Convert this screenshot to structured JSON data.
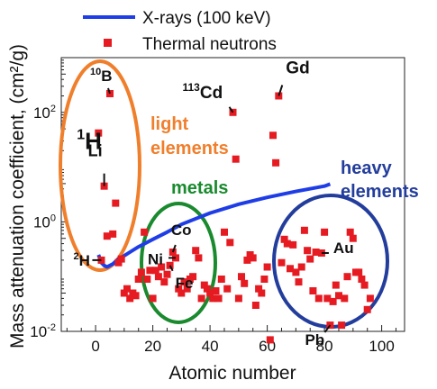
{
  "chart_data": {
    "type": "scatter",
    "xlabel": "Atomic number",
    "ylabel": "Mass attenuation coefficient, (cm²/g)",
    "xlim": [
      -12,
      108
    ],
    "ylim_log10": [
      -2,
      3
    ],
    "yscale": "log",
    "grid": false,
    "legend_position": "top-left",
    "x_ticks": [
      {
        "value": 0,
        "label": "0"
      },
      {
        "value": 20,
        "label": "20"
      },
      {
        "value": 40,
        "label": "40"
      },
      {
        "value": 60,
        "label": "60"
      },
      {
        "value": 80,
        "label": "80"
      },
      {
        "value": 100,
        "label": "100"
      }
    ],
    "y_ticks": [
      {
        "exp": -2,
        "base": "10",
        "sup": "-2"
      },
      {
        "exp": 0,
        "base": "10",
        "sup": "0"
      },
      {
        "exp": 2,
        "base": "10",
        "sup": "2"
      }
    ],
    "series": [
      {
        "name": "X-rays (100 keV)",
        "kind": "line",
        "color": "#1f3de6",
        "points": [
          [
            1,
            0.25
          ],
          [
            2,
            0.18
          ],
          [
            3,
            0.16
          ],
          [
            4,
            0.15
          ],
          [
            5,
            0.16
          ],
          [
            6,
            0.17
          ],
          [
            7,
            0.19
          ],
          [
            8,
            0.21
          ],
          [
            10,
            0.24
          ],
          [
            12,
            0.28
          ],
          [
            15,
            0.35
          ],
          [
            20,
            0.48
          ],
          [
            25,
            0.65
          ],
          [
            30,
            0.9
          ],
          [
            40,
            1.45
          ],
          [
            50,
            2.1
          ],
          [
            60,
            2.8
          ],
          [
            70,
            3.6
          ],
          [
            80,
            4.5
          ],
          [
            82,
            4.9
          ]
        ]
      },
      {
        "name": "Thermal neutrons",
        "kind": "scatter",
        "color": "#e61b22",
        "points": [
          [
            1,
            42
          ],
          [
            2,
            0.2
          ],
          [
            3,
            4.5
          ],
          [
            4,
            0.55
          ],
          [
            5,
            220
          ],
          [
            6,
            0.6
          ],
          [
            7,
            2.2
          ],
          [
            8,
            0.18
          ],
          [
            9,
            0.21
          ],
          [
            10,
            0.05
          ],
          [
            11,
            0.06
          ],
          [
            12,
            0.04
          ],
          [
            13,
            0.05
          ],
          [
            14,
            0.045
          ],
          [
            15,
            0.09
          ],
          [
            16,
            0.12
          ],
          [
            17,
            0.65
          ],
          [
            18,
            0.09
          ],
          [
            19,
            0.13
          ],
          [
            20,
            0.04
          ],
          [
            21,
            0.13
          ],
          [
            22,
            0.1
          ],
          [
            23,
            0.15
          ],
          [
            24,
            0.08
          ],
          [
            25,
            0.11
          ],
          [
            26,
            0.16
          ],
          [
            27,
            0.28
          ],
          [
            28,
            0.22
          ],
          [
            29,
            0.06
          ],
          [
            30,
            0.05
          ],
          [
            31,
            0.08
          ],
          [
            32,
            0.06
          ],
          [
            33,
            0.09
          ],
          [
            34,
            0.1
          ],
          [
            35,
            0.3
          ],
          [
            36,
            0.22
          ],
          [
            37,
            0.04
          ],
          [
            38,
            0.07
          ],
          [
            39,
            0.06
          ],
          [
            40,
            0.05
          ],
          [
            41,
            0.04
          ],
          [
            42,
            0.055
          ],
          [
            43,
            0.04
          ],
          [
            44,
            0.09
          ],
          [
            45,
            0.65
          ],
          [
            46,
            0.06
          ],
          [
            47,
            0.42
          ],
          [
            48,
            100
          ],
          [
            49,
            14
          ],
          [
            50,
            0.04
          ],
          [
            51,
            0.1
          ],
          [
            52,
            0.075
          ],
          [
            53,
            0.2
          ],
          [
            54,
            0.25
          ],
          [
            55,
            0.22
          ],
          [
            56,
            0.03
          ],
          [
            57,
            0.06
          ],
          [
            58,
            0.05
          ],
          [
            59,
            0.09
          ],
          [
            60,
            0.15
          ],
          [
            61,
            0.007
          ],
          [
            62,
            38
          ],
          [
            63,
            12
          ],
          [
            64,
            200
          ],
          [
            65,
            0.18
          ],
          [
            66,
            0.48
          ],
          [
            67,
            0.4
          ],
          [
            68,
            0.14
          ],
          [
            69,
            0.38
          ],
          [
            70,
            0.12
          ],
          [
            71,
            0.08
          ],
          [
            72,
            0.15
          ],
          [
            73,
            0.7
          ],
          [
            74,
            0.3
          ],
          [
            75,
            0.21
          ],
          [
            76,
            0.055
          ],
          [
            77,
            0.28
          ],
          [
            78,
            0.04
          ],
          [
            79,
            0.27
          ],
          [
            80,
            0.65
          ],
          [
            81,
            0.04
          ],
          [
            82,
            0.013
          ],
          [
            83,
            0.035
          ],
          [
            84,
            0.07
          ],
          [
            85,
            0.045
          ],
          [
            86,
            0.013
          ],
          [
            87,
            0.04
          ],
          [
            88,
            0.1
          ],
          [
            89,
            0.65
          ],
          [
            90,
            0.5
          ],
          [
            91,
            0.12
          ],
          [
            92,
            0.12
          ],
          [
            93,
            0.09
          ],
          [
            94,
            0.07
          ],
          [
            95,
            0.025
          ],
          [
            96,
            0.04
          ]
        ]
      }
    ],
    "element_labels": [
      {
        "base": "B",
        "mass": "10",
        "x": 5,
        "y": 220
      },
      {
        "base": "H",
        "mass": "1",
        "x": 1,
        "y": 42
      },
      {
        "base": "Li",
        "mass": "",
        "x": 3,
        "y": 4.5
      },
      {
        "base": "H",
        "mass": "2",
        "x": 2,
        "y": 0.2
      },
      {
        "base": "Cd",
        "mass": "113",
        "x": 48,
        "y": 100
      },
      {
        "base": "Gd",
        "mass": "",
        "x": 64,
        "y": 200
      },
      {
        "base": "Co",
        "mass": "",
        "x": 27,
        "y": 0.28
      },
      {
        "base": "Ni",
        "mass": "",
        "x": 28,
        "y": 0.22
      },
      {
        "base": "Fe",
        "mass": "",
        "x": 26,
        "y": 0.16
      },
      {
        "base": "Au",
        "mass": "",
        "x": 79,
        "y": 0.27
      },
      {
        "base": "Pb",
        "mass": "",
        "x": 82,
        "y": 0.013
      }
    ],
    "group_annotations": [
      {
        "text": "light",
        "color": "#f07f2c"
      },
      {
        "text": "elements",
        "color": "#f07f2c"
      },
      {
        "text": "metals",
        "color": "#1a8a2e"
      },
      {
        "text": "heavy",
        "color": "#233d9c"
      },
      {
        "text": "elements",
        "color": "#233d9c"
      }
    ],
    "group_ellipse_colors": {
      "light": "#f07f2c",
      "metals": "#1a8a2e",
      "heavy": "#233d9c"
    }
  }
}
